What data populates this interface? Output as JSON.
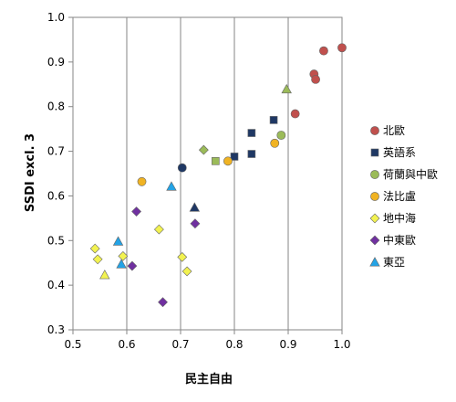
{
  "chart_data": {
    "type": "scatter",
    "title": "",
    "xlabel": "民主自由",
    "ylabel": "SSDI excl. 3",
    "xlim": [
      0.5,
      1.0
    ],
    "ylim": [
      0.3,
      1.0
    ],
    "xticks": [
      "0.5",
      "0.6",
      "0.7",
      "0.8",
      "0.9",
      "1.0"
    ],
    "yticks": [
      "0.3",
      "0.4",
      "0.5",
      "0.6",
      "0.7",
      "0.8",
      "0.9",
      "1.0"
    ],
    "grid": "vertical",
    "legend_position": "right",
    "series": [
      {
        "name": "北歐",
        "marker": "circle",
        "color": "#c0504d",
        "points": [
          [
            1.0,
            0.932
          ],
          [
            0.966,
            0.925
          ],
          [
            0.948,
            0.873
          ],
          [
            0.951,
            0.861
          ],
          [
            0.913,
            0.784
          ]
        ]
      },
      {
        "name": "英語系",
        "marker": "square",
        "color": "#1f3864",
        "points": [
          [
            0.873,
            0.77
          ],
          [
            0.832,
            0.741
          ],
          [
            0.832,
            0.694
          ],
          [
            0.8,
            0.688
          ]
        ]
      },
      {
        "name": "荷蘭與中歐",
        "marker": "circle",
        "color": "#9bbb59",
        "points": [
          [
            0.887,
            0.736
          ]
        ]
      },
      {
        "name": "法比盧",
        "marker": "circle",
        "color": "#f0b323",
        "points": [
          [
            0.875,
            0.718
          ],
          [
            0.788,
            0.678
          ],
          [
            0.628,
            0.632
          ]
        ]
      },
      {
        "name": "地中海",
        "marker": "diamond",
        "color": "#f2f250",
        "points": [
          [
            0.541,
            0.482
          ],
          [
            0.546,
            0.458
          ],
          [
            0.593,
            0.465
          ],
          [
            0.66,
            0.525
          ],
          [
            0.703,
            0.463
          ],
          [
            0.712,
            0.431
          ]
        ]
      },
      {
        "name": "中東歐",
        "marker": "diamond",
        "color": "#7030a0",
        "points": [
          [
            0.618,
            0.565
          ],
          [
            0.61,
            0.443
          ],
          [
            0.727,
            0.538
          ],
          [
            0.667,
            0.362
          ]
        ]
      },
      {
        "name": "東亞",
        "marker": "triangle",
        "color": "#23a3e6",
        "points": [
          [
            0.584,
            0.498
          ],
          [
            0.59,
            0.447
          ],
          [
            0.683,
            0.621
          ]
        ]
      }
    ],
    "extra_points": [
      {
        "marker": "circle",
        "color": "#1f3864",
        "point": [
          0.703,
          0.663
        ]
      },
      {
        "marker": "triangle",
        "color": "#1f3864",
        "point": [
          0.726,
          0.574
        ]
      },
      {
        "marker": "diamond",
        "color": "#9bbb59",
        "point": [
          0.743,
          0.703
        ]
      },
      {
        "marker": "square",
        "color": "#9bbb59",
        "point": [
          0.765,
          0.678
        ]
      },
      {
        "marker": "triangle",
        "color": "#9bbb59",
        "point": [
          0.897,
          0.839
        ]
      },
      {
        "marker": "triangle",
        "color": "#f2f250",
        "point": [
          0.559,
          0.423
        ]
      }
    ]
  }
}
